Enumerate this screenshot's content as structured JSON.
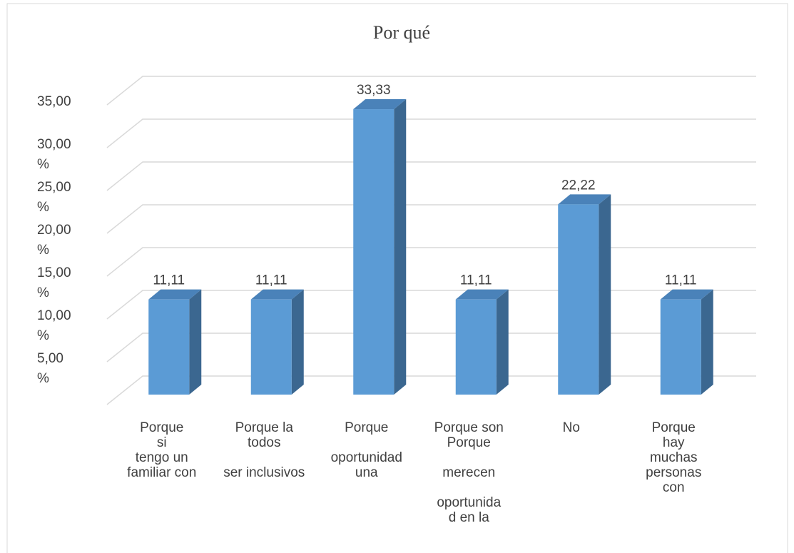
{
  "chart_data": {
    "type": "bar3d",
    "title": "Por qué",
    "categories": [
      "Porque\nsi\ntengo un\nfamiliar con",
      "Porque la\ntodos\n\nser inclusivos",
      "Porque\n\noportunidad\nuna",
      "Porque son\nPorque\n\nmerecen\n\noportunida\nd en la",
      "No",
      "Porque\nhay\nmuchas\npersonas\ncon"
    ],
    "values": [
      11.11,
      11.11,
      33.33,
      11.11,
      22.22,
      11.11
    ],
    "value_labels": [
      "11,11",
      "11,11",
      "33,33",
      "11,11",
      "22,22",
      "11,11"
    ],
    "color": "#5b9bd5",
    "ylim": [
      0,
      35
    ],
    "yticks": [
      {
        "value": 5,
        "label": "5,00\n%"
      },
      {
        "value": 10,
        "label": "10,00\n%"
      },
      {
        "value": 15,
        "label": "15,00\n%"
      },
      {
        "value": 20,
        "label": "20,00\n%"
      },
      {
        "value": 25,
        "label": "25,00\n%"
      },
      {
        "value": 30,
        "label": "30,00\n%"
      },
      {
        "value": 35,
        "label": "35,00"
      }
    ],
    "grid": true
  }
}
